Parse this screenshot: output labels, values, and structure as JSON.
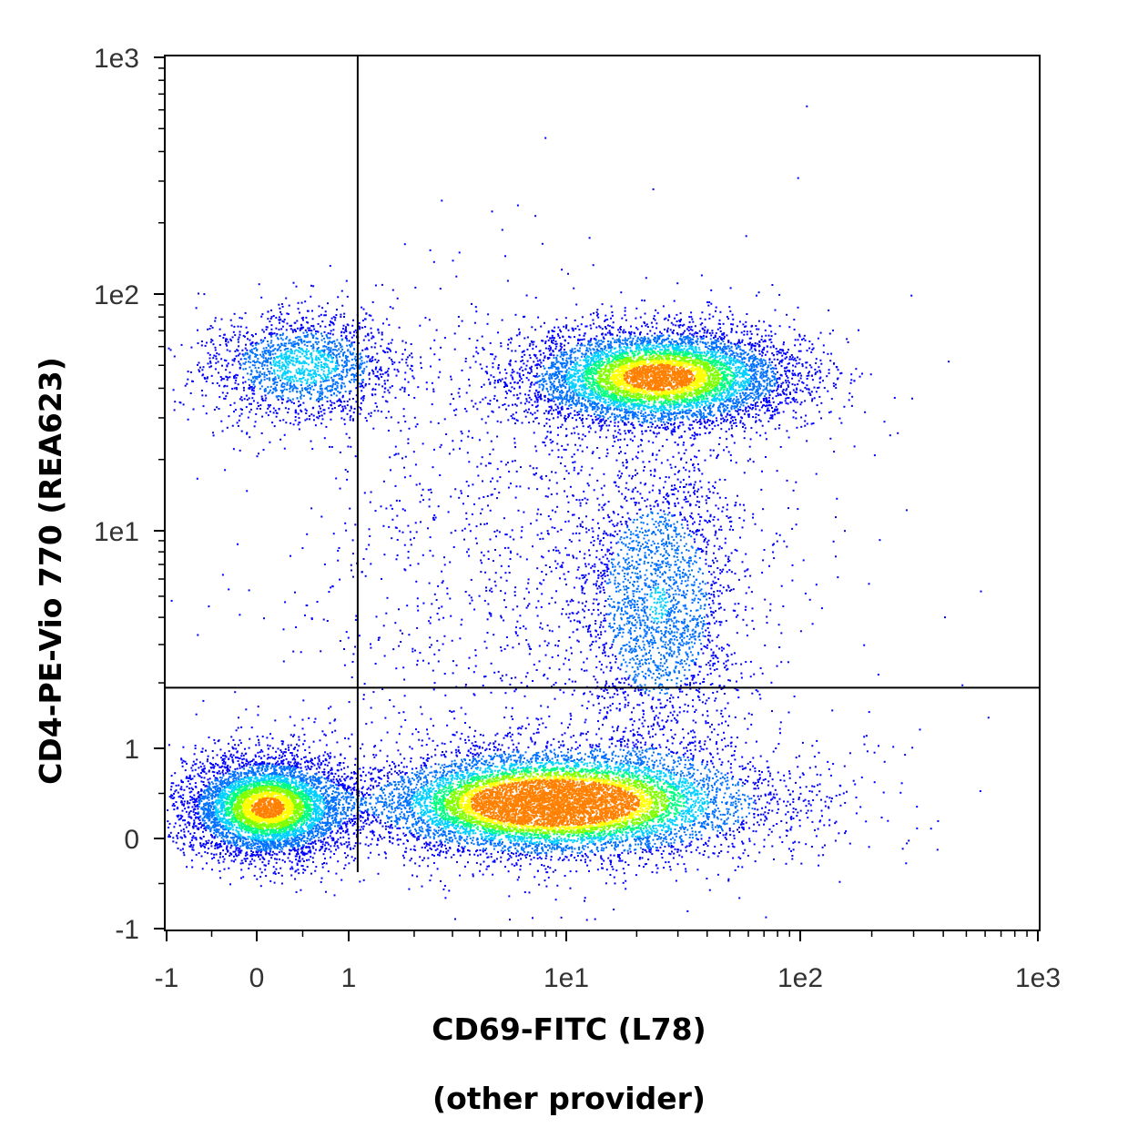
{
  "chart_data": {
    "type": "scatter",
    "subtype": "flow-cytometry-density-dot-plot",
    "xlabel": "CD69-FITC (L78)",
    "xlabel_sub": "(other provider)",
    "ylabel": "CD4-PE-Vio 770 (REA623)",
    "x_scale": "biexponential",
    "y_scale": "biexponential",
    "xlim": [
      -1,
      1000
    ],
    "ylim": [
      -1,
      1000
    ],
    "x_ticks": [
      {
        "value": -1,
        "label": "-1"
      },
      {
        "value": 0,
        "label": "0"
      },
      {
        "value": 1,
        "label": "1"
      },
      {
        "value": 10,
        "label": "1e1"
      },
      {
        "value": 100,
        "label": "1e2"
      },
      {
        "value": 1000,
        "label": "1e3"
      }
    ],
    "y_ticks": [
      {
        "value": -1,
        "label": "-1"
      },
      {
        "value": 0,
        "label": "0"
      },
      {
        "value": 1,
        "label": "1"
      },
      {
        "value": 10,
        "label": "1e1"
      },
      {
        "value": 100,
        "label": "1e2"
      },
      {
        "value": 1000,
        "label": "1e3"
      }
    ],
    "quadrant_gate": {
      "x": 1.1,
      "y": 1.9
    },
    "color_scale": [
      "#0000ff",
      "#0070ff",
      "#00d0ff",
      "#00ff80",
      "#80ff00",
      "#ffff00",
      "#ff8000"
    ],
    "populations": [
      {
        "center_x": 0.1,
        "center_y": 0.35,
        "density": "high"
      },
      {
        "center_x": 8,
        "center_y": 0.4,
        "density": "high"
      },
      {
        "center_x": 25,
        "center_y": 45,
        "density": "high"
      },
      {
        "center_x": 0.5,
        "center_y": 50,
        "density": "medium"
      },
      {
        "center_x": 25,
        "center_y": 4.5,
        "density": "low"
      }
    ],
    "grid": false,
    "legend": "none"
  }
}
